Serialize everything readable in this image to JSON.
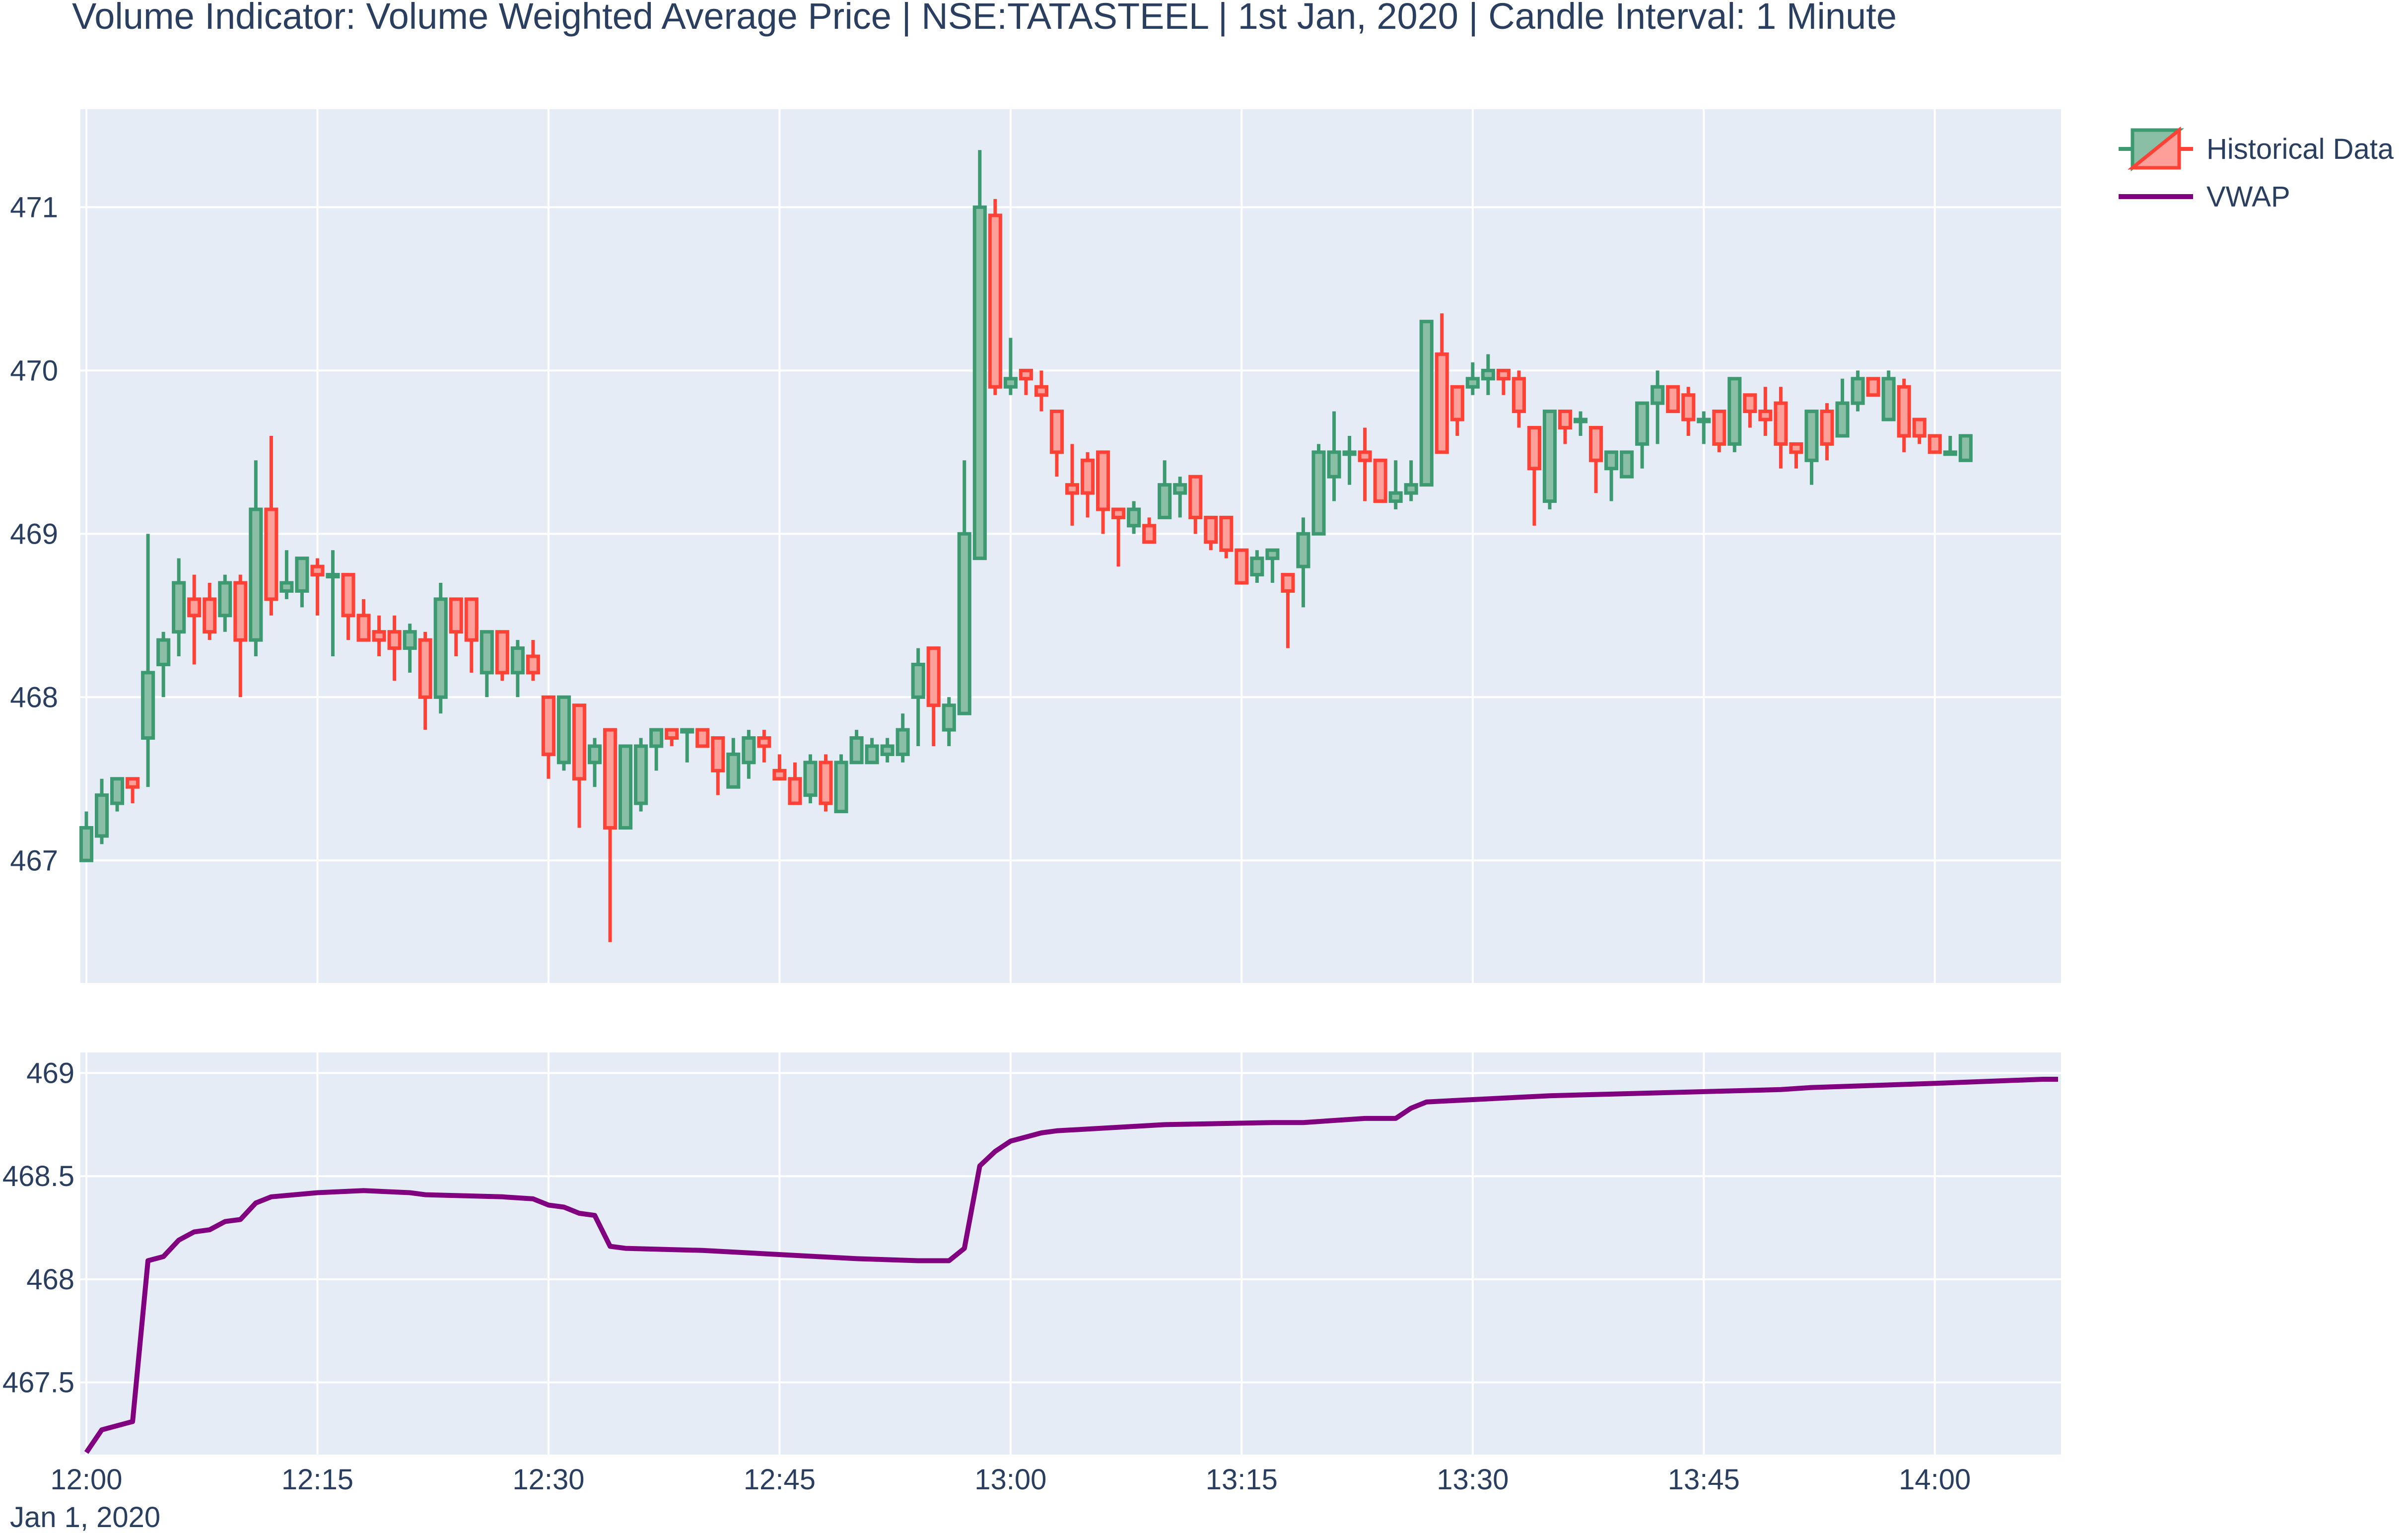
{
  "title": "Volume Indicator: Volume Weighted Average Price | NSE:TATASTEEL | 1st Jan, 2020 | Candle Interval: 1 Minute",
  "colors": {
    "increasing": "#3D9970",
    "increasing_fill": "#8BBFA5",
    "decreasing": "#FF4136",
    "decreasing_fill": "#FF9F9A",
    "vwap": "#800080",
    "plot_bg": "#E5ECF6",
    "grid": "#FFFFFF",
    "text": "#2a3f5f"
  },
  "chart_data": [
    {
      "type": "candlestick",
      "series": [
        {
          "name": "Historical Data"
        }
      ],
      "x_start": "12:00",
      "interval_minutes": 1,
      "ylim": [
        466.25,
        471.6
      ],
      "yticks": [
        "467",
        "468",
        "469",
        "470",
        "471"
      ],
      "legend_position": "top-right",
      "grid": true,
      "ohlc": [
        [
          467.0,
          467.3,
          467.0,
          467.2
        ],
        [
          467.15,
          467.5,
          467.1,
          467.4
        ],
        [
          467.35,
          467.5,
          467.3,
          467.5
        ],
        [
          467.5,
          467.5,
          467.35,
          467.45
        ],
        [
          467.75,
          469.0,
          467.45,
          468.15
        ],
        [
          468.2,
          468.4,
          468.0,
          468.35
        ],
        [
          468.4,
          468.85,
          468.25,
          468.7
        ],
        [
          468.6,
          468.75,
          468.2,
          468.5
        ],
        [
          468.6,
          468.7,
          468.35,
          468.4
        ],
        [
          468.5,
          468.75,
          468.4,
          468.7
        ],
        [
          468.7,
          468.75,
          468.0,
          468.35
        ],
        [
          468.35,
          469.45,
          468.25,
          469.15
        ],
        [
          469.15,
          469.6,
          468.5,
          468.6
        ],
        [
          468.65,
          468.9,
          468.6,
          468.7
        ],
        [
          468.65,
          468.85,
          468.55,
          468.85
        ],
        [
          468.8,
          468.85,
          468.5,
          468.75
        ],
        [
          468.75,
          468.9,
          468.25,
          468.75
        ],
        [
          468.75,
          468.75,
          468.35,
          468.5
        ],
        [
          468.5,
          468.6,
          468.35,
          468.35
        ],
        [
          468.4,
          468.5,
          468.25,
          468.35
        ],
        [
          468.4,
          468.5,
          468.1,
          468.3
        ],
        [
          468.3,
          468.45,
          468.15,
          468.4
        ],
        [
          468.35,
          468.4,
          467.8,
          468.0
        ],
        [
          468.0,
          468.7,
          467.9,
          468.6
        ],
        [
          468.6,
          468.6,
          468.25,
          468.4
        ],
        [
          468.6,
          468.6,
          468.15,
          468.35
        ],
        [
          468.15,
          468.4,
          468.0,
          468.4
        ],
        [
          468.4,
          468.4,
          468.1,
          468.15
        ],
        [
          468.15,
          468.35,
          468.0,
          468.3
        ],
        [
          468.25,
          468.35,
          468.1,
          468.15
        ],
        [
          468.0,
          468.0,
          467.5,
          467.65
        ],
        [
          467.6,
          468.0,
          467.55,
          468.0
        ],
        [
          467.95,
          467.95,
          467.2,
          467.5
        ],
        [
          467.6,
          467.75,
          467.45,
          467.7
        ],
        [
          467.8,
          467.8,
          466.5,
          467.2
        ],
        [
          467.2,
          467.7,
          467.2,
          467.7
        ],
        [
          467.35,
          467.75,
          467.3,
          467.7
        ],
        [
          467.7,
          467.8,
          467.55,
          467.8
        ],
        [
          467.8,
          467.8,
          467.7,
          467.75
        ],
        [
          467.8,
          467.8,
          467.6,
          467.8
        ],
        [
          467.8,
          467.8,
          467.7,
          467.7
        ],
        [
          467.75,
          467.75,
          467.4,
          467.55
        ],
        [
          467.45,
          467.75,
          467.45,
          467.65
        ],
        [
          467.6,
          467.8,
          467.5,
          467.75
        ],
        [
          467.75,
          467.8,
          467.6,
          467.7
        ],
        [
          467.55,
          467.65,
          467.5,
          467.5
        ],
        [
          467.5,
          467.6,
          467.35,
          467.35
        ],
        [
          467.4,
          467.65,
          467.35,
          467.6
        ],
        [
          467.6,
          467.65,
          467.3,
          467.35
        ],
        [
          467.3,
          467.65,
          467.3,
          467.6
        ],
        [
          467.6,
          467.8,
          467.6,
          467.75
        ],
        [
          467.6,
          467.75,
          467.6,
          467.7
        ],
        [
          467.65,
          467.75,
          467.6,
          467.7
        ],
        [
          467.65,
          467.9,
          467.6,
          467.8
        ],
        [
          468.0,
          468.3,
          467.7,
          468.2
        ],
        [
          468.3,
          468.3,
          467.7,
          467.95
        ],
        [
          467.8,
          468.0,
          467.7,
          467.95
        ],
        [
          467.9,
          469.45,
          467.9,
          469.0
        ],
        [
          468.85,
          471.35,
          468.85,
          471.0
        ],
        [
          470.95,
          471.05,
          469.85,
          469.9
        ],
        [
          469.9,
          470.2,
          469.85,
          469.95
        ],
        [
          470.0,
          470.0,
          469.85,
          469.95
        ],
        [
          469.9,
          470.0,
          469.75,
          469.85
        ],
        [
          469.75,
          469.75,
          469.35,
          469.5
        ],
        [
          469.3,
          469.55,
          469.05,
          469.25
        ],
        [
          469.45,
          469.5,
          469.1,
          469.25
        ],
        [
          469.5,
          469.5,
          469.0,
          469.15
        ],
        [
          469.15,
          469.15,
          468.8,
          469.1
        ],
        [
          469.05,
          469.2,
          469.0,
          469.15
        ],
        [
          469.05,
          469.1,
          468.95,
          468.95
        ],
        [
          469.1,
          469.45,
          469.1,
          469.3
        ],
        [
          469.25,
          469.35,
          469.1,
          469.3
        ],
        [
          469.35,
          469.35,
          469.0,
          469.1
        ],
        [
          469.1,
          469.1,
          468.9,
          468.95
        ],
        [
          469.1,
          469.1,
          468.85,
          468.9
        ],
        [
          468.9,
          468.9,
          468.7,
          468.7
        ],
        [
          468.75,
          468.9,
          468.7,
          468.85
        ],
        [
          468.85,
          468.9,
          468.7,
          468.9
        ],
        [
          468.75,
          468.75,
          468.3,
          468.65
        ],
        [
          468.8,
          469.1,
          468.55,
          469.0
        ],
        [
          469.0,
          469.55,
          469.0,
          469.5
        ],
        [
          469.35,
          469.75,
          469.2,
          469.5
        ],
        [
          469.5,
          469.6,
          469.3,
          469.5
        ],
        [
          469.5,
          469.65,
          469.2,
          469.45
        ],
        [
          469.45,
          469.45,
          469.2,
          469.2
        ],
        [
          469.2,
          469.45,
          469.15,
          469.25
        ],
        [
          469.25,
          469.45,
          469.2,
          469.3
        ],
        [
          469.3,
          470.3,
          469.3,
          470.3
        ],
        [
          470.1,
          470.35,
          469.5,
          469.5
        ],
        [
          469.9,
          469.9,
          469.6,
          469.7
        ],
        [
          469.9,
          470.05,
          469.85,
          469.95
        ],
        [
          469.95,
          470.1,
          469.85,
          470.0
        ],
        [
          470.0,
          470.0,
          469.85,
          469.95
        ],
        [
          469.95,
          470.0,
          469.65,
          469.75
        ],
        [
          469.65,
          469.65,
          469.05,
          469.4
        ],
        [
          469.2,
          469.75,
          469.15,
          469.75
        ],
        [
          469.75,
          469.75,
          469.55,
          469.65
        ],
        [
          469.7,
          469.75,
          469.6,
          469.7
        ],
        [
          469.65,
          469.65,
          469.25,
          469.45
        ],
        [
          469.4,
          469.5,
          469.2,
          469.5
        ],
        [
          469.35,
          469.5,
          469.35,
          469.5
        ],
        [
          469.55,
          469.75,
          469.4,
          469.8
        ],
        [
          469.8,
          470.0,
          469.55,
          469.9
        ],
        [
          469.9,
          469.9,
          469.75,
          469.75
        ],
        [
          469.85,
          469.9,
          469.6,
          469.7
        ],
        [
          469.7,
          469.75,
          469.55,
          469.7
        ],
        [
          469.75,
          469.75,
          469.5,
          469.55
        ],
        [
          469.55,
          469.95,
          469.5,
          469.95
        ],
        [
          469.85,
          469.85,
          469.65,
          469.75
        ],
        [
          469.75,
          469.9,
          469.6,
          469.7
        ],
        [
          469.8,
          469.9,
          469.4,
          469.55
        ],
        [
          469.55,
          469.55,
          469.4,
          469.5
        ],
        [
          469.45,
          469.75,
          469.3,
          469.75
        ],
        [
          469.75,
          469.8,
          469.45,
          469.55
        ],
        [
          469.6,
          469.95,
          469.6,
          469.8
        ],
        [
          469.8,
          470.0,
          469.75,
          469.95
        ],
        [
          469.95,
          469.95,
          469.85,
          469.85
        ],
        [
          469.7,
          470.0,
          469.7,
          469.95
        ],
        [
          469.9,
          469.95,
          469.5,
          469.6
        ],
        [
          469.7,
          469.7,
          469.55,
          469.6
        ],
        [
          469.6,
          469.6,
          469.5,
          469.5
        ],
        [
          469.5,
          469.6,
          469.5,
          469.5
        ],
        [
          469.45,
          469.6,
          469.45,
          469.6
        ]
      ]
    },
    {
      "type": "line",
      "series": [
        {
          "name": "VWAP"
        }
      ],
      "ylim": [
        467.15,
        469.1
      ],
      "yticks": [
        "467.5",
        "468",
        "468.5",
        "469"
      ],
      "grid": true,
      "points": [
        [
          0,
          467.16
        ],
        [
          1,
          467.27
        ],
        [
          2,
          467.29
        ],
        [
          3,
          467.31
        ],
        [
          4,
          468.09
        ],
        [
          5,
          468.11
        ],
        [
          6,
          468.19
        ],
        [
          7,
          468.23
        ],
        [
          8,
          468.24
        ],
        [
          9,
          468.28
        ],
        [
          10,
          468.29
        ],
        [
          11,
          468.37
        ],
        [
          12,
          468.4
        ],
        [
          15,
          468.42
        ],
        [
          18,
          468.43
        ],
        [
          21,
          468.42
        ],
        [
          22,
          468.41
        ],
        [
          27,
          468.4
        ],
        [
          29,
          468.39
        ],
        [
          30,
          468.36
        ],
        [
          31,
          468.35
        ],
        [
          32,
          468.32
        ],
        [
          33,
          468.31
        ],
        [
          34,
          468.16
        ],
        [
          35,
          468.15
        ],
        [
          40,
          468.14
        ],
        [
          50,
          468.1
        ],
        [
          54,
          468.09
        ],
        [
          56,
          468.09
        ],
        [
          57,
          468.15
        ],
        [
          58,
          468.55
        ],
        [
          59,
          468.62
        ],
        [
          60,
          468.67
        ],
        [
          62,
          468.71
        ],
        [
          63,
          468.72
        ],
        [
          70,
          468.75
        ],
        [
          77,
          468.76
        ],
        [
          79,
          468.76
        ],
        [
          83,
          468.78
        ],
        [
          85,
          468.78
        ],
        [
          86,
          468.83
        ],
        [
          87,
          468.86
        ],
        [
          95,
          468.89
        ],
        [
          110,
          468.92
        ],
        [
          112,
          468.93
        ],
        [
          120,
          468.95
        ],
        [
          127,
          468.97
        ],
        [
          128,
          468.97
        ]
      ]
    }
  ],
  "xaxis": {
    "ticks": [
      {
        "minute": 0,
        "label": "12:00"
      },
      {
        "minute": 15,
        "label": "12:15"
      },
      {
        "minute": 30,
        "label": "12:30"
      },
      {
        "minute": 45,
        "label": "12:45"
      },
      {
        "minute": 60,
        "label": "13:00"
      },
      {
        "minute": 75,
        "label": "13:15"
      },
      {
        "minute": 90,
        "label": "13:30"
      },
      {
        "minute": 105,
        "label": "13:45"
      },
      {
        "minute": 120,
        "label": "14:00"
      }
    ],
    "date_label": "Jan 1, 2020"
  },
  "legend": [
    {
      "label": "Historical Data",
      "icon": "candlestick-icon"
    },
    {
      "label": "VWAP",
      "icon": "line-icon"
    }
  ]
}
